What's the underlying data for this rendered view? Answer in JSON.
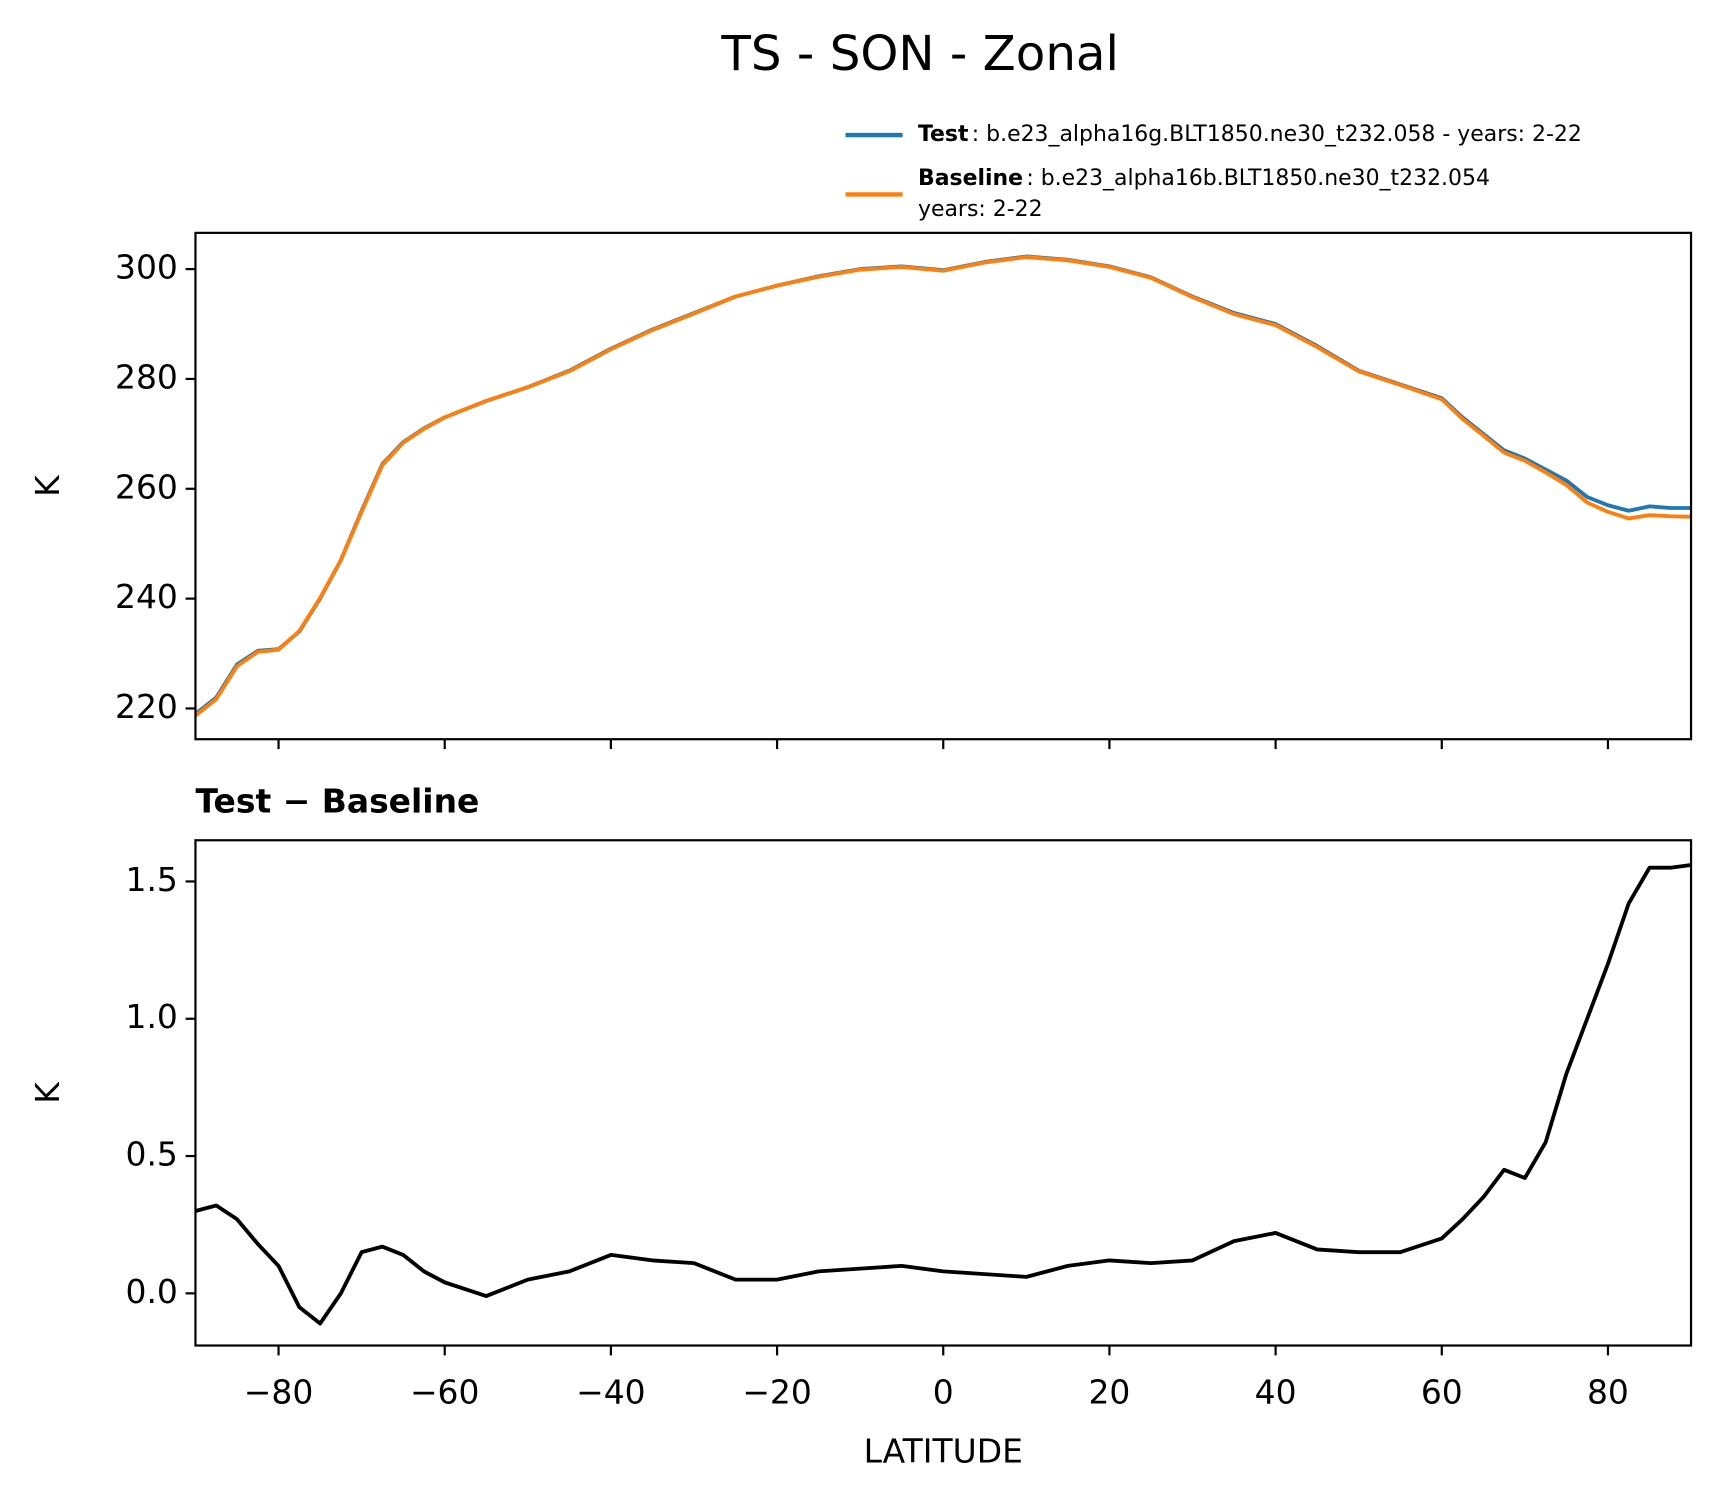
{
  "chart_data": [
    {
      "type": "line",
      "title": "TS - SON - Zonal",
      "ylabel": "K",
      "x": [
        -90,
        -87.5,
        -85,
        -82.5,
        -80,
        -77.5,
        -75,
        -72.5,
        -70,
        -67.5,
        -65,
        -62.5,
        -60,
        -55,
        -50,
        -45,
        -40,
        -35,
        -30,
        -25,
        -20,
        -15,
        -10,
        -5,
        0,
        5,
        10,
        15,
        20,
        25,
        30,
        35,
        40,
        45,
        50,
        55,
        60,
        62.5,
        65,
        67.5,
        70,
        72.5,
        75,
        77.5,
        80,
        82.5,
        85,
        87.5,
        90
      ],
      "series": [
        {
          "name": "Test",
          "case_lines": [
            ": b.e23_alpha16g.BLT1850.ne30_t232.058 - years: 2-22"
          ],
          "color": "#1f77b4",
          "values": [
            219,
            222,
            228,
            230.5,
            230.8,
            234,
            240,
            247,
            256,
            264.5,
            268.5,
            271,
            273,
            276,
            278.5,
            281.5,
            285.5,
            289,
            292,
            295,
            297,
            298.7,
            300,
            300.5,
            299.8,
            301.3,
            302.3,
            301.7,
            300.5,
            298.5,
            295,
            292,
            290,
            286,
            281.5,
            279,
            276.5,
            273,
            270,
            267,
            265.5,
            263.5,
            261.5,
            258.5,
            257,
            256,
            256.8,
            256.5,
            256.5
          ]
        },
        {
          "name": "Baseline",
          "case_lines": [
            ": b.e23_alpha16b.BLT1850.ne30_t232.054",
            "years: 2-22"
          ],
          "color": "#ff7f0e",
          "values": [
            218.7,
            221.7,
            227.7,
            230.3,
            230.7,
            234.1,
            240.1,
            247.0,
            255.8,
            264.3,
            268.4,
            270.9,
            273.0,
            276.0,
            278.5,
            281.4,
            285.4,
            288.9,
            291.9,
            295.0,
            297.0,
            298.6,
            299.9,
            300.4,
            299.7,
            301.2,
            302.2,
            301.6,
            300.4,
            298.4,
            294.9,
            291.8,
            289.8,
            285.8,
            281.4,
            278.9,
            276.3,
            272.7,
            269.7,
            266.6,
            265.1,
            263.0,
            260.7,
            257.5,
            255.8,
            254.6,
            255.2,
            255.0,
            254.9
          ]
        }
      ],
      "xlim": [
        -90,
        90
      ],
      "xticks": [
        -80,
        -60,
        -40,
        -20,
        0,
        20,
        40,
        60,
        80
      ],
      "ylim": [
        214.4,
        306.6
      ],
      "yticks": [
        220,
        240,
        260,
        280,
        300
      ]
    },
    {
      "type": "line",
      "title": "Test − Baseline",
      "xlabel": "LATITUDE",
      "ylabel": "K",
      "x": [
        -90,
        -87.5,
        -85,
        -82.5,
        -80,
        -77.5,
        -75,
        -72.5,
        -70,
        -67.5,
        -65,
        -62.5,
        -60,
        -55,
        -50,
        -45,
        -40,
        -35,
        -30,
        -25,
        -20,
        -15,
        -10,
        -5,
        0,
        5,
        10,
        15,
        20,
        25,
        30,
        35,
        40,
        45,
        50,
        55,
        60,
        62.5,
        65,
        67.5,
        70,
        72.5,
        75,
        77.5,
        80,
        82.5,
        85,
        87.5,
        90
      ],
      "values": [
        0.3,
        0.32,
        0.27,
        0.18,
        0.1,
        -0.05,
        -0.11,
        0.0,
        0.15,
        0.17,
        0.14,
        0.08,
        0.04,
        -0.01,
        0.05,
        0.08,
        0.14,
        0.12,
        0.11,
        0.05,
        0.05,
        0.08,
        0.09,
        0.1,
        0.08,
        0.07,
        0.06,
        0.1,
        0.12,
        0.11,
        0.12,
        0.19,
        0.22,
        0.16,
        0.15,
        0.15,
        0.2,
        0.27,
        0.35,
        0.45,
        0.42,
        0.55,
        0.8,
        1.0,
        1.2,
        1.42,
        1.55,
        1.55,
        1.56
      ],
      "color": "#000000",
      "xlim": [
        -90,
        90
      ],
      "xticks": [
        {
          "value": -80,
          "label": "−80"
        },
        {
          "value": -60,
          "label": "−60"
        },
        {
          "value": -40,
          "label": "−40"
        },
        {
          "value": -20,
          "label": "−20"
        },
        0,
        20,
        40,
        60,
        80
      ],
      "ylim": [
        -0.19,
        1.65
      ],
      "yticks": [
        {
          "value": 0,
          "label": "0.0"
        },
        0.5,
        {
          "value": 1,
          "label": "1.0"
        },
        1.5
      ]
    }
  ]
}
